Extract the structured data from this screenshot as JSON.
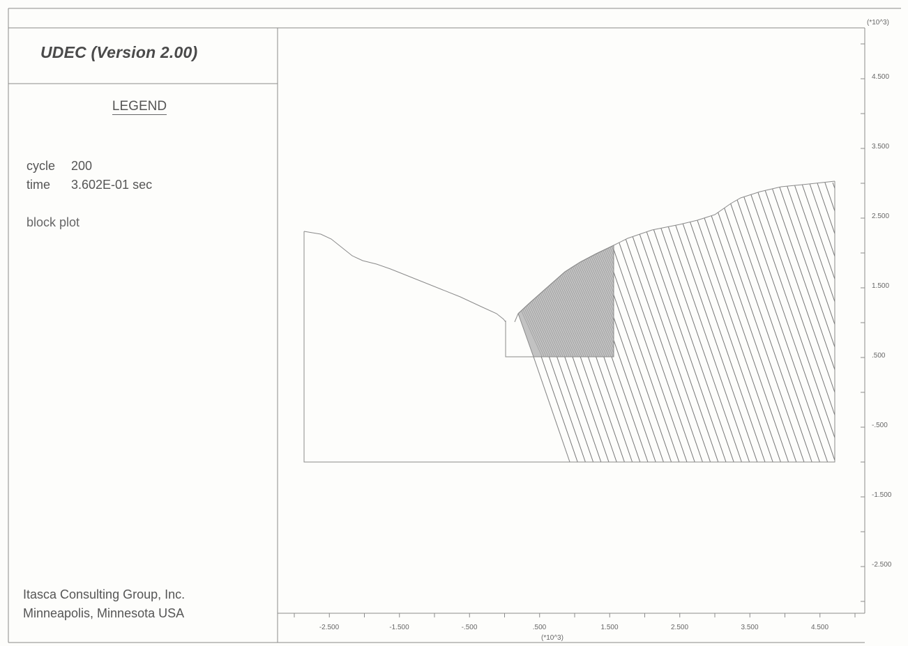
{
  "header": {
    "title": "UDEC (Version 2.00)"
  },
  "legend": {
    "heading": "LEGEND",
    "cycle_label": "cycle",
    "cycle_value": "200",
    "time_label": "time",
    "time_value": "3.602E-01 sec",
    "plot_type": "block plot"
  },
  "footer": {
    "company_line1": "Itasca Consulting Group, Inc.",
    "company_line2": "Minneapolis, Minnesota USA"
  },
  "axes": {
    "x_multiplier": "(*10^3)",
    "y_multiplier": "(*10^3)",
    "x_tick_labels": [
      "-2.500",
      "-1.500",
      "-.500",
      ".500",
      "1.500",
      "2.500",
      "3.500",
      "4.500"
    ],
    "y_tick_labels": [
      "4.500",
      "3.500",
      "2.500",
      "1.500",
      ".500",
      "-.500",
      "-1.500",
      "-2.500"
    ]
  },
  "colors": {
    "line": "#8a8a8a",
    "hatch": "#777777",
    "shaded_block": "#bdbdbd",
    "background": "#fdfdfb"
  }
}
